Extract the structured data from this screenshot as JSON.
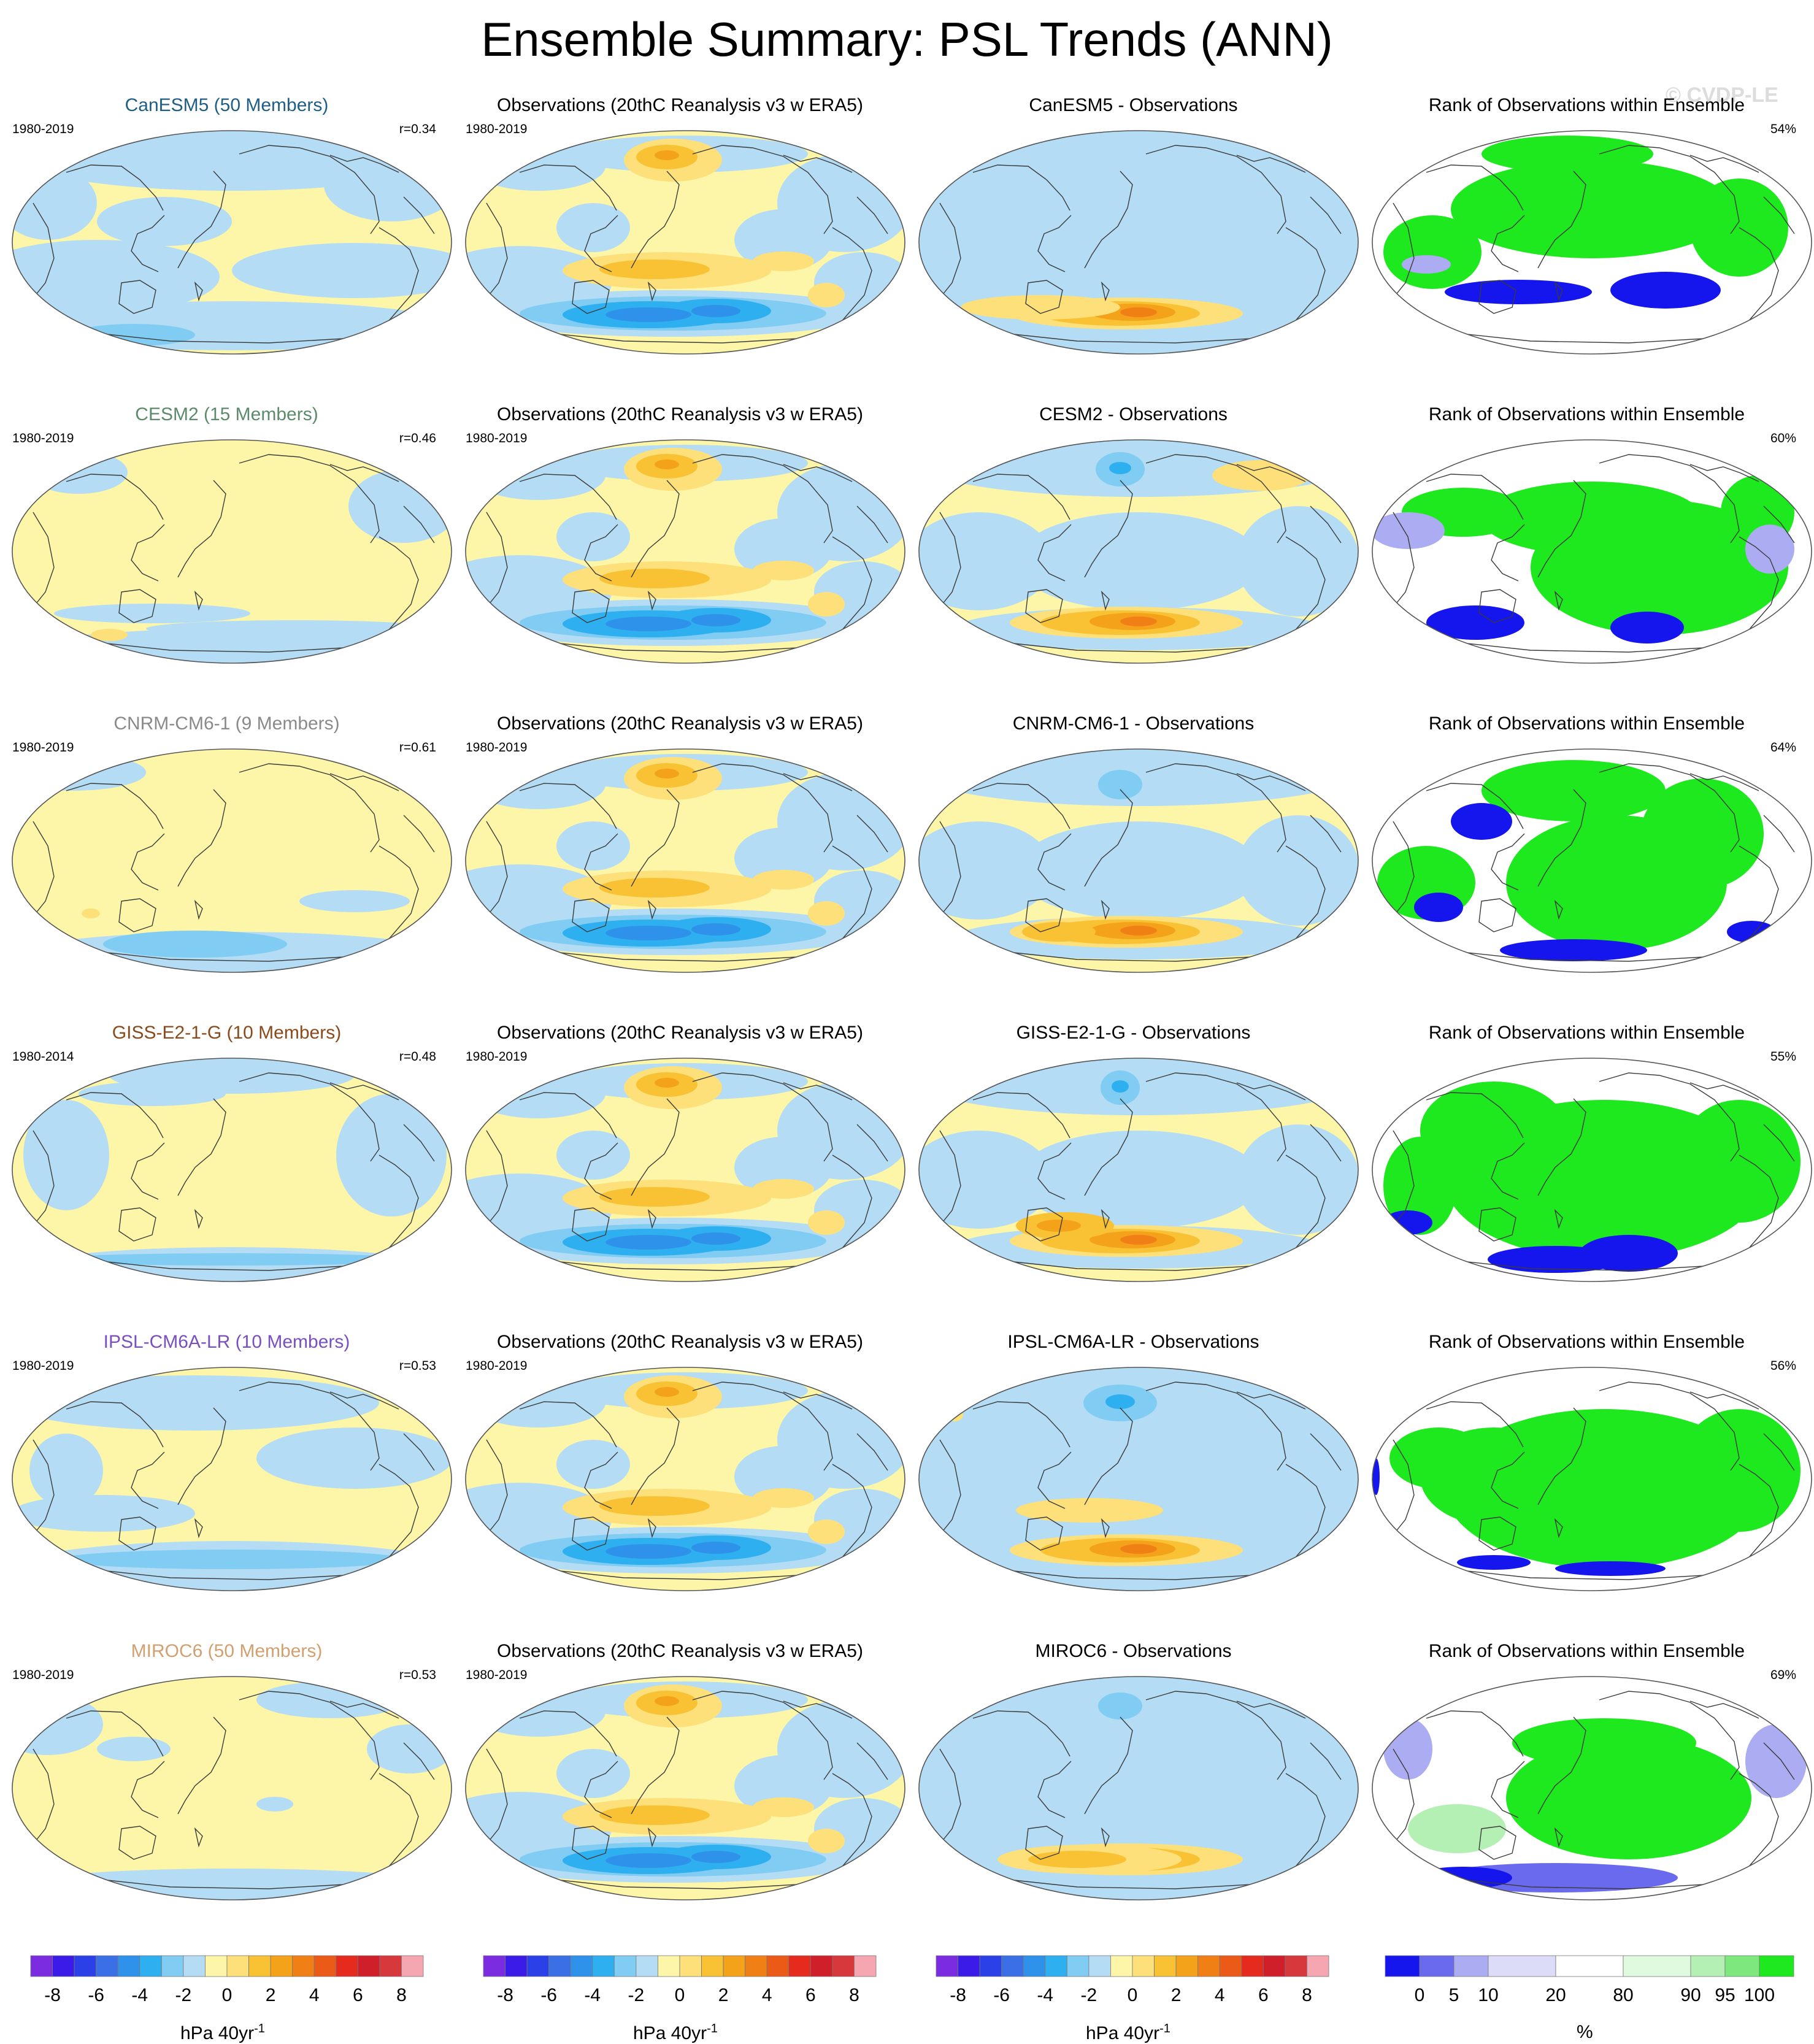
{
  "title": "Ensemble Summary: PSL Trends (ANN)",
  "watermark": "© CVDP-LE",
  "rows": [
    {
      "model": "CanESM5 (50 Members)",
      "model_color": "#1f5e86",
      "model_years": "1980-2019",
      "r": "r=0.34",
      "obs_title": "Observations (20thC Reanalysis v3 w ERA5)",
      "obs_years": "1980-2019",
      "diff_title": "CanESM5 - Observations",
      "rank_title": "Rank of Observations within Ensemble",
      "rank_pct": "54%"
    },
    {
      "model": "CESM2 (15 Members)",
      "model_color": "#5b8b6b",
      "model_years": "1980-2019",
      "r": "r=0.46",
      "obs_title": "Observations (20thC Reanalysis v3 w ERA5)",
      "obs_years": "1980-2019",
      "diff_title": "CESM2 - Observations",
      "rank_title": "Rank of Observations within Ensemble",
      "rank_pct": "60%"
    },
    {
      "model": "CNRM-CM6-1 (9 Members)",
      "model_color": "#8a8a8a",
      "model_years": "1980-2019",
      "r": "r=0.61",
      "obs_title": "Observations (20thC Reanalysis v3 w ERA5)",
      "obs_years": "1980-2019",
      "diff_title": "CNRM-CM6-1 - Observations",
      "rank_title": "Rank of Observations within Ensemble",
      "rank_pct": "64%"
    },
    {
      "model": "GISS-E2-1-G (10 Members)",
      "model_color": "#8a4a1c",
      "model_years": "1980-2014",
      "r": "r=0.48",
      "obs_title": "Observations (20thC Reanalysis v3 w ERA5)",
      "obs_years": "1980-2019",
      "diff_title": "GISS-E2-1-G - Observations",
      "rank_title": "Rank of Observations within Ensemble",
      "rank_pct": "55%"
    },
    {
      "model": "IPSL-CM6A-LR (10 Members)",
      "model_color": "#7a4fc0",
      "model_years": "1980-2019",
      "r": "r=0.53",
      "obs_title": "Observations (20thC Reanalysis v3 w ERA5)",
      "obs_years": "1980-2019",
      "diff_title": "IPSL-CM6A-LR - Observations",
      "rank_title": "Rank of Observations within Ensemble",
      "rank_pct": "56%"
    },
    {
      "model": "MIROC6 (50 Members)",
      "model_color": "#d2a070",
      "model_years": "1980-2019",
      "r": "r=0.53",
      "obs_title": "Observations (20thC Reanalysis v3 w ERA5)",
      "obs_years": "1980-2019",
      "diff_title": "MIROC6 - Observations",
      "rank_title": "Rank of Observations within Ensemble",
      "rank_pct": "69%"
    }
  ],
  "colorbars": {
    "trend": {
      "colors": [
        "#7b2ce0",
        "#3a1be8",
        "#2b40e6",
        "#3a6fe6",
        "#2f92ea",
        "#2eb0f0",
        "#80ccf2",
        "#b4dcf4",
        "#fdf6a8",
        "#fde07a",
        "#f9c235",
        "#f5a21b",
        "#f07f16",
        "#ec5a18",
        "#e52a1e",
        "#cf1f2a",
        "#d6383c",
        "#f5a6b0"
      ],
      "tick_labels": [
        "-8",
        "-6",
        "-4",
        "-2",
        "0",
        "2",
        "4",
        "6",
        "8"
      ],
      "unit": "hPa 40yr",
      "unit_sup": "-1"
    },
    "rank": {
      "colors": [
        "#1515ee",
        "#6a6aee",
        "#acacf2",
        "#dcdcf8",
        "#ffffff",
        "#e0fae0",
        "#b4f0b4",
        "#7ee87e",
        "#1ee81e"
      ],
      "tick_labels": [
        "0",
        "5",
        "10",
        "20",
        "80",
        "90",
        "95",
        "100"
      ],
      "unit": "%"
    }
  },
  "chart_data": [
    {
      "type": "heatmap",
      "panel": "model ensemble-mean PSL trend",
      "rows": 6,
      "units": "hPa 40yr-1",
      "levels": [
        -8,
        -7,
        -6,
        -5,
        -4,
        -3,
        -2,
        -1,
        0,
        1,
        2,
        3,
        4,
        5,
        6,
        7,
        8
      ]
    },
    {
      "type": "heatmap",
      "panel": "observed PSL trend",
      "rows": 6,
      "units": "hPa 40yr-1",
      "levels": [
        -8,
        -7,
        -6,
        -5,
        -4,
        -3,
        -2,
        -1,
        0,
        1,
        2,
        3,
        4,
        5,
        6,
        7,
        8
      ]
    },
    {
      "type": "heatmap",
      "panel": "model minus observations",
      "rows": 6,
      "units": "hPa 40yr-1",
      "levels": [
        -8,
        -7,
        -6,
        -5,
        -4,
        -3,
        -2,
        -1,
        0,
        1,
        2,
        3,
        4,
        5,
        6,
        7,
        8
      ]
    },
    {
      "type": "heatmap",
      "panel": "rank of observations within ensemble",
      "rows": 6,
      "units": "%",
      "levels": [
        0,
        5,
        10,
        20,
        80,
        90,
        95,
        100
      ],
      "domain_percent": [
        54,
        60,
        64,
        55,
        56,
        69
      ]
    }
  ]
}
